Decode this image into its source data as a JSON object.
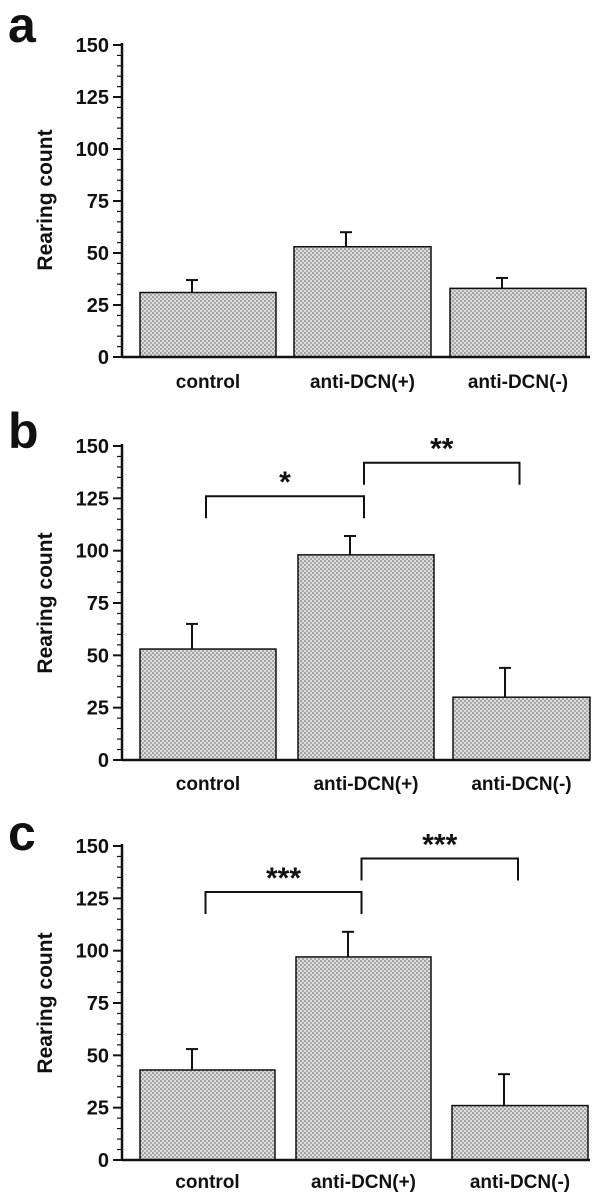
{
  "chart_data": [
    {
      "panel": "a",
      "type": "bar",
      "categories": [
        "control",
        "anti-DCN(+)",
        "anti-DCN(-)"
      ],
      "values": [
        31,
        53,
        33
      ],
      "errors": [
        6,
        7,
        5
      ],
      "ylabel": "Rearing count",
      "ylim": [
        0,
        150
      ],
      "yticks": [
        0,
        25,
        50,
        75,
        100,
        125,
        150
      ],
      "significance": []
    },
    {
      "panel": "b",
      "type": "bar",
      "categories": [
        "control",
        "anti-DCN(+)",
        "anti-DCN(-)"
      ],
      "values": [
        53,
        98,
        30
      ],
      "errors": [
        12,
        9,
        14
      ],
      "ylabel": "Rearing count",
      "ylim": [
        0,
        150
      ],
      "yticks": [
        0,
        25,
        50,
        75,
        100,
        125,
        150
      ],
      "significance": [
        {
          "from": 0,
          "to": 1,
          "label": "*"
        },
        {
          "from": 1,
          "to": 2,
          "label": "**"
        }
      ]
    },
    {
      "panel": "c",
      "type": "bar",
      "categories": [
        "control",
        "anti-DCN(+)",
        "anti-DCN(-)"
      ],
      "values": [
        43,
        97,
        26
      ],
      "errors": [
        10,
        12,
        15
      ],
      "ylabel": "Rearing count",
      "ylim": [
        0,
        150
      ],
      "yticks": [
        0,
        25,
        50,
        75,
        100,
        125,
        150
      ],
      "significance": [
        {
          "from": 0,
          "to": 1,
          "label": "***"
        },
        {
          "from": 1,
          "to": 2,
          "label": "***"
        }
      ]
    }
  ],
  "colors": {
    "bar_fill": "#d6d6d6",
    "dot": "#555555",
    "ink": "#111111"
  }
}
